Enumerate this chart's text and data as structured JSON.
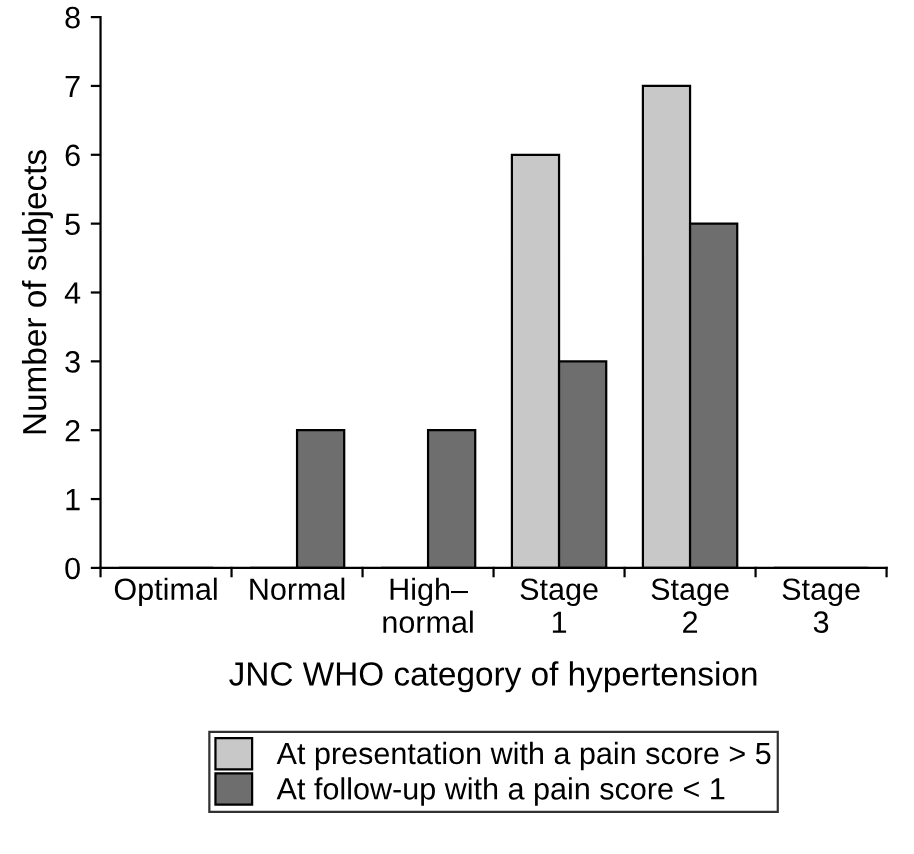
{
  "chart_data": {
    "type": "bar",
    "xlabel": "JNC WHO category of hypertension",
    "ylabel": "Number of subjects",
    "categories": [
      "Optimal",
      "Normal",
      "High–\nnormal",
      "Stage\n1",
      "Stage\n2",
      "Stage\n3"
    ],
    "series": [
      {
        "name": "At presentation with a pain score > 5",
        "color": "#c8c8c8",
        "values": [
          0,
          0,
          0,
          6,
          7,
          0
        ]
      },
      {
        "name": "At follow-up with a pain score < 1",
        "color": "#6e6e6e",
        "values": [
          0,
          2,
          2,
          3,
          5,
          0
        ]
      }
    ],
    "ylim": [
      0,
      8
    ],
    "yticks": [
      0,
      1,
      2,
      3,
      4,
      5,
      6,
      7,
      8
    ],
    "grid": false,
    "legend": "bottom"
  }
}
